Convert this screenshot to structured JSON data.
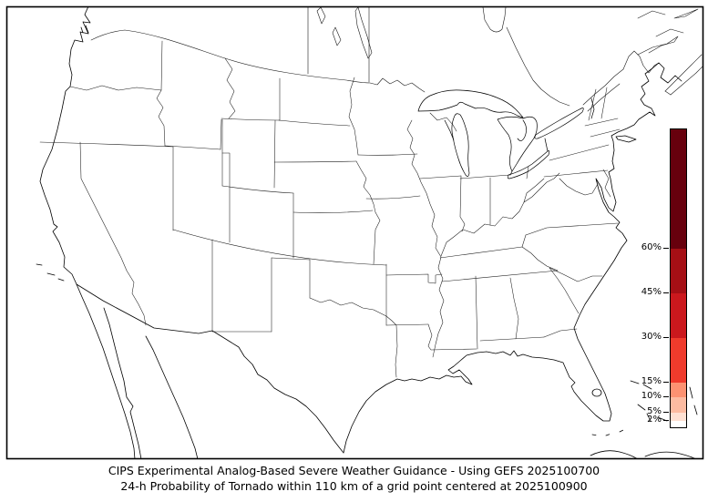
{
  "caption": {
    "line1": "CIPS Experimental Analog-Based Severe Weather Guidance - Using GEFS 2025100700",
    "line2": "24-h Probability of Tornado within 110 km of a grid point centered at 2025100900"
  },
  "map": {
    "region": "Contiguous United States with southern Canada, northern Mexico, Cuba and Bahamas coastlines",
    "background_color": "#ffffff",
    "coastline_color": "#000000",
    "state_border_color": "#1a1a1a",
    "frame_color": "#000000"
  },
  "chart_data": {
    "type": "heatmap",
    "title": "24-h Probability of Tornado within 110 km of a grid point",
    "note": "No probability contours >= 2% are drawn on the map for this forecast",
    "colorbar": {
      "orientation": "vertical",
      "value_min": 0,
      "value_max": 100,
      "unit": "%",
      "levels": [
        {
          "from": 0,
          "to": 2,
          "color": "#ffffff"
        },
        {
          "from": 2,
          "to": 5,
          "color": "#fee0d2"
        },
        {
          "from": 5,
          "to": 10,
          "color": "#fcbba1"
        },
        {
          "from": 10,
          "to": 15,
          "color": "#fc9272"
        },
        {
          "from": 15,
          "to": 30,
          "color": "#ef3b2c"
        },
        {
          "from": 30,
          "to": 45,
          "color": "#cb181d"
        },
        {
          "from": 45,
          "to": 60,
          "color": "#a50f15"
        },
        {
          "from": 60,
          "to": 100,
          "color": "#67000d"
        }
      ],
      "ticks": [
        {
          "value": 60,
          "label": "60%"
        },
        {
          "value": 45,
          "label": "45%"
        },
        {
          "value": 30,
          "label": "30%"
        },
        {
          "value": 15,
          "label": "15%"
        },
        {
          "value": 10,
          "label": "10%"
        },
        {
          "value": 5,
          "label": "5%"
        },
        {
          "value": 2,
          "label": "2%"
        }
      ]
    }
  }
}
